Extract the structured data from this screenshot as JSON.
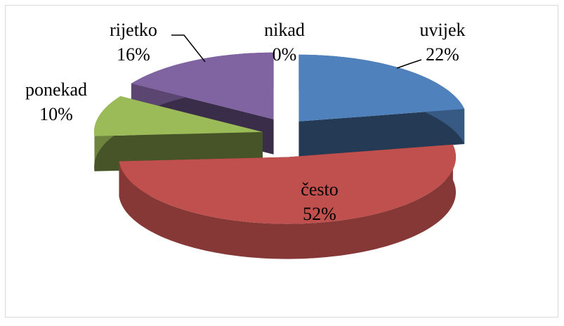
{
  "chart_data": {
    "type": "pie",
    "categories": [
      "uvijek",
      "često",
      "ponekad",
      "rijetko",
      "nikad"
    ],
    "values": [
      22,
      52,
      10,
      16,
      0
    ],
    "value_labels": [
      "22%",
      "52%",
      "10%",
      "16%",
      "0%"
    ],
    "colors": [
      "#4f81bd",
      "#c0504d",
      "#9bbb59",
      "#8064a2",
      "#4bacc6"
    ]
  }
}
